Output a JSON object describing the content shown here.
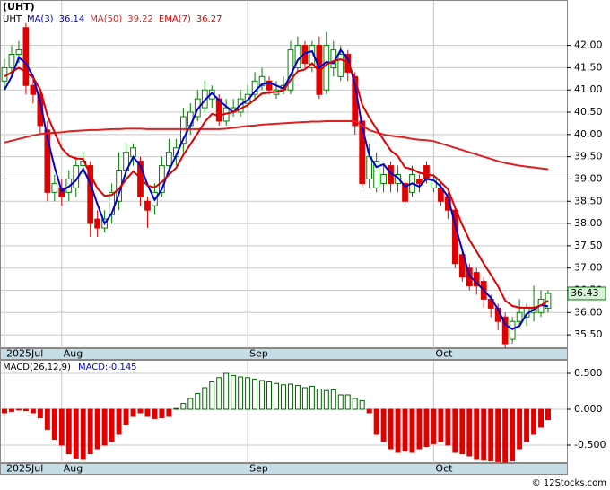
{
  "title": "(UHT)",
  "footer": "© 12Stocks.com",
  "chart_data": [
    {
      "type": "candlestick",
      "ticker": "UHT",
      "open": [
        41.2,
        41.5,
        41.8,
        42.4,
        41.1,
        40.9,
        40.1,
        38.7,
        38.8,
        38.7,
        38.8,
        39.3,
        39.3,
        38.1,
        37.9,
        38.2,
        38.5,
        39.2,
        39.5,
        39.4,
        38.5,
        38.4,
        38.7,
        39.3,
        39.5,
        39.8,
        40.2,
        40.4,
        40.6,
        40.8,
        40.8,
        40.3,
        40.5,
        40.5,
        40.7,
        40.9,
        41.1,
        41.2,
        40.9,
        41.0,
        41.0,
        41.5,
        42.0,
        41.5,
        42.0,
        41.0,
        41.5,
        41.3,
        41.8,
        41.3,
        40.3,
        39.0,
        38.8,
        38.9,
        39.3,
        38.9,
        38.9,
        38.7,
        39.0,
        39.3,
        38.8,
        38.8,
        38.6,
        38.3,
        37.3,
        37.0,
        36.9,
        36.7,
        36.3,
        36.1,
        35.9,
        35.4,
        35.8,
        35.9,
        36.0,
        36.0,
        36.1
      ],
      "high": [
        41.7,
        42.0,
        42.1,
        42.5,
        41.3,
        41.0,
        40.3,
        39.1,
        39.0,
        39.2,
        39.5,
        39.6,
        39.4,
        38.3,
        38.3,
        38.9,
        39.6,
        39.8,
        39.8,
        39.5,
        38.6,
        38.9,
        39.5,
        39.9,
        39.9,
        40.6,
        40.7,
        41.0,
        41.2,
        41.1,
        40.9,
        40.8,
        40.8,
        41.0,
        41.1,
        41.4,
        41.5,
        41.3,
        41.2,
        41.3,
        42.1,
        42.2,
        42.1,
        42.1,
        42.2,
        42.3,
        42.1,
        42.0,
        41.9,
        41.4,
        40.4,
        39.8,
        39.6,
        39.3,
        39.4,
        39.3,
        39.0,
        39.3,
        39.1,
        39.4,
        39.1,
        38.9,
        38.7,
        38.4,
        37.4,
        37.1,
        37.0,
        36.8,
        36.4,
        36.2,
        36.0,
        35.9,
        36.3,
        36.2,
        36.6,
        36.5,
        36.5
      ],
      "low": [
        41.0,
        41.3,
        41.6,
        40.9,
        40.7,
        40.0,
        38.5,
        38.5,
        38.4,
        38.5,
        38.6,
        39.1,
        37.7,
        37.7,
        37.8,
        38.0,
        38.3,
        39.0,
        39.3,
        38.4,
        37.9,
        38.2,
        38.6,
        39.2,
        39.3,
        39.6,
        40.0,
        40.3,
        40.5,
        40.6,
        40.2,
        40.2,
        40.4,
        40.4,
        40.6,
        40.8,
        41.0,
        40.9,
        40.8,
        40.9,
        40.9,
        41.4,
        41.5,
        41.4,
        40.8,
        40.9,
        41.3,
        41.2,
        41.2,
        40.0,
        38.8,
        38.8,
        38.7,
        38.7,
        38.7,
        38.7,
        38.4,
        38.6,
        38.7,
        38.9,
        38.7,
        38.4,
        38.1,
        37.0,
        36.7,
        36.5,
        36.4,
        36.1,
        35.9,
        35.6,
        35.2,
        35.3,
        35.7,
        35.7,
        35.8,
        35.9,
        36.0
      ],
      "close": [
        41.5,
        41.8,
        41.9,
        41.1,
        40.9,
        40.2,
        38.7,
        38.9,
        38.6,
        39.0,
        39.3,
        39.4,
        38.0,
        37.9,
        38.1,
        38.7,
        39.2,
        39.6,
        39.7,
        38.6,
        38.3,
        38.7,
        39.3,
        39.6,
        39.7,
        40.4,
        40.5,
        40.8,
        41.0,
        41.0,
        40.3,
        40.6,
        40.6,
        40.8,
        40.9,
        41.2,
        41.3,
        41.0,
        41.0,
        41.1,
        41.9,
        42.0,
        41.6,
        42.0,
        40.9,
        42.0,
        41.9,
        41.8,
        41.4,
        40.2,
        38.9,
        39.5,
        39.4,
        39.1,
        38.9,
        39.1,
        38.5,
        39.1,
        38.9,
        39.0,
        39.0,
        38.5,
        38.3,
        37.1,
        36.8,
        36.6,
        36.6,
        36.3,
        36.1,
        35.8,
        35.3,
        35.8,
        36.0,
        36.1,
        36.1,
        36.3,
        36.43
      ],
      "up_color": "#008000",
      "down_color": "#e00000",
      "lines": [
        {
          "name": "MA(3)",
          "color": "#0000cc",
          "values": [
            41.0,
            41.3,
            41.73,
            41.6,
            41.3,
            40.73,
            39.93,
            39.27,
            38.73,
            38.83,
            38.97,
            39.23,
            38.9,
            38.43,
            38.0,
            38.23,
            38.67,
            39.17,
            39.5,
            39.3,
            38.87,
            38.53,
            38.77,
            39.2,
            39.53,
            39.9,
            40.2,
            40.57,
            40.77,
            40.93,
            40.77,
            40.63,
            40.5,
            40.67,
            40.77,
            40.97,
            41.13,
            41.17,
            41.1,
            41.03,
            41.33,
            41.67,
            41.83,
            41.87,
            41.5,
            41.63,
            41.6,
            41.9,
            41.7,
            41.13,
            40.17,
            39.53,
            39.27,
            39.33,
            39.13,
            39.03,
            38.83,
            38.9,
            38.83,
            39.0,
            38.97,
            38.83,
            38.6,
            37.97,
            37.4,
            36.83,
            36.67,
            36.5,
            36.33,
            36.07,
            35.73,
            35.63,
            35.7,
            35.97,
            36.07,
            36.17,
            36.14
          ]
        },
        {
          "name": "MA(50)",
          "color": "#e02020",
          "values": [
            39.82,
            39.86,
            39.9,
            39.94,
            39.98,
            40.01,
            40.03,
            40.04,
            40.05,
            40.07,
            40.08,
            40.09,
            40.1,
            40.1,
            40.11,
            40.12,
            40.12,
            40.13,
            40.13,
            40.13,
            40.12,
            40.12,
            40.12,
            40.12,
            40.12,
            40.12,
            40.12,
            40.12,
            40.12,
            40.12,
            40.12,
            40.13,
            40.15,
            40.17,
            40.19,
            40.2,
            40.22,
            40.23,
            40.24,
            40.25,
            40.26,
            40.27,
            40.28,
            40.29,
            40.29,
            40.3,
            40.3,
            40.3,
            40.3,
            40.3,
            40.2,
            40.1,
            40.05,
            40.0,
            39.97,
            39.95,
            39.93,
            39.9,
            39.88,
            39.87,
            39.85,
            39.8,
            39.75,
            39.7,
            39.65,
            39.6,
            39.55,
            39.5,
            39.45,
            39.4,
            39.36,
            39.33,
            39.3,
            39.28,
            39.26,
            39.24,
            39.22
          ]
        },
        {
          "name": "EMA(7)",
          "color": "#e00000",
          "values": [
            41.3,
            41.4,
            41.5,
            41.4,
            41.28,
            41.01,
            40.43,
            40.05,
            39.69,
            39.52,
            39.46,
            39.45,
            39.09,
            38.79,
            38.62,
            38.64,
            38.78,
            38.99,
            39.17,
            39.03,
            38.85,
            38.81,
            38.93,
            39.1,
            39.25,
            39.54,
            39.78,
            40.03,
            40.28,
            40.46,
            40.42,
            40.47,
            40.5,
            40.58,
            40.66,
            40.79,
            40.92,
            40.94,
            40.96,
            40.99,
            41.22,
            41.42,
            41.46,
            41.6,
            41.42,
            41.57,
            41.65,
            41.69,
            41.62,
            41.26,
            40.67,
            40.38,
            40.13,
            39.88,
            39.64,
            39.51,
            39.26,
            39.22,
            39.14,
            39.1,
            39.08,
            38.93,
            38.77,
            38.36,
            37.97,
            37.63,
            37.37,
            37.1,
            36.85,
            36.59,
            36.27,
            36.15,
            36.11,
            36.11,
            36.11,
            36.16,
            36.27
          ]
        }
      ],
      "ylim": [
        35.2,
        43.0
      ],
      "yticks": [
        {
          "value": 35.5,
          "label": "35.50"
        },
        {
          "value": 36,
          "label": "36.00"
        },
        {
          "value": 36.5,
          "label": "36.50"
        },
        {
          "value": 37,
          "label": "37.00"
        },
        {
          "value": 37.5,
          "label": "37.50"
        },
        {
          "value": 38,
          "label": "38.00"
        },
        {
          "value": 38.5,
          "label": "38.50"
        },
        {
          "value": 39,
          "label": "39.00"
        },
        {
          "value": 39.5,
          "label": "39.50"
        },
        {
          "value": 40,
          "label": "40.00"
        },
        {
          "value": 40.5,
          "label": "40.50"
        },
        {
          "value": 41,
          "label": "41.00"
        },
        {
          "value": 41.5,
          "label": "41.50"
        },
        {
          "value": 42,
          "label": "42.00"
        }
      ],
      "grid": true,
      "date_labels": [
        {
          "index": 0,
          "label": "2025Jul"
        },
        {
          "index": 8,
          "label": "Aug"
        },
        {
          "index": 34,
          "label": "Sep"
        },
        {
          "index": 60,
          "label": "Oct"
        }
      ]
    },
    {
      "type": "bar",
      "name": "MACD(26,12,9)",
      "value_name": "MACD:",
      "values": [
        -0.05,
        -0.03,
        -0.01,
        -0.02,
        -0.05,
        -0.12,
        -0.28,
        -0.42,
        -0.5,
        -0.62,
        -0.68,
        -0.7,
        -0.62,
        -0.55,
        -0.5,
        -0.45,
        -0.35,
        -0.22,
        -0.1,
        -0.05,
        -0.1,
        -0.13,
        -0.12,
        -0.1,
        0.01,
        0.08,
        0.15,
        0.22,
        0.3,
        0.38,
        0.44,
        0.5,
        0.47,
        0.45,
        0.44,
        0.42,
        0.4,
        0.38,
        0.36,
        0.34,
        0.35,
        0.33,
        0.3,
        0.32,
        0.28,
        0.26,
        0.27,
        0.2,
        0.2,
        0.15,
        0.12,
        -0.05,
        -0.35,
        -0.45,
        -0.55,
        -0.6,
        -0.58,
        -0.6,
        -0.55,
        -0.52,
        -0.48,
        -0.45,
        -0.5,
        -0.6,
        -0.62,
        -0.65,
        -0.7,
        -0.71,
        -0.72,
        -0.73,
        -0.74,
        -0.72,
        -0.55,
        -0.45,
        -0.35,
        -0.25,
        -0.145
      ],
      "up_color": "#006000",
      "down_color": "#e00000",
      "ylim": [
        -0.75,
        0.675
      ],
      "yticks": [
        {
          "value": -0.5,
          "label": "-0.500"
        },
        {
          "value": 0,
          "label": "0.000"
        },
        {
          "value": 0.5,
          "label": "0.500"
        }
      ],
      "grid": true
    }
  ]
}
